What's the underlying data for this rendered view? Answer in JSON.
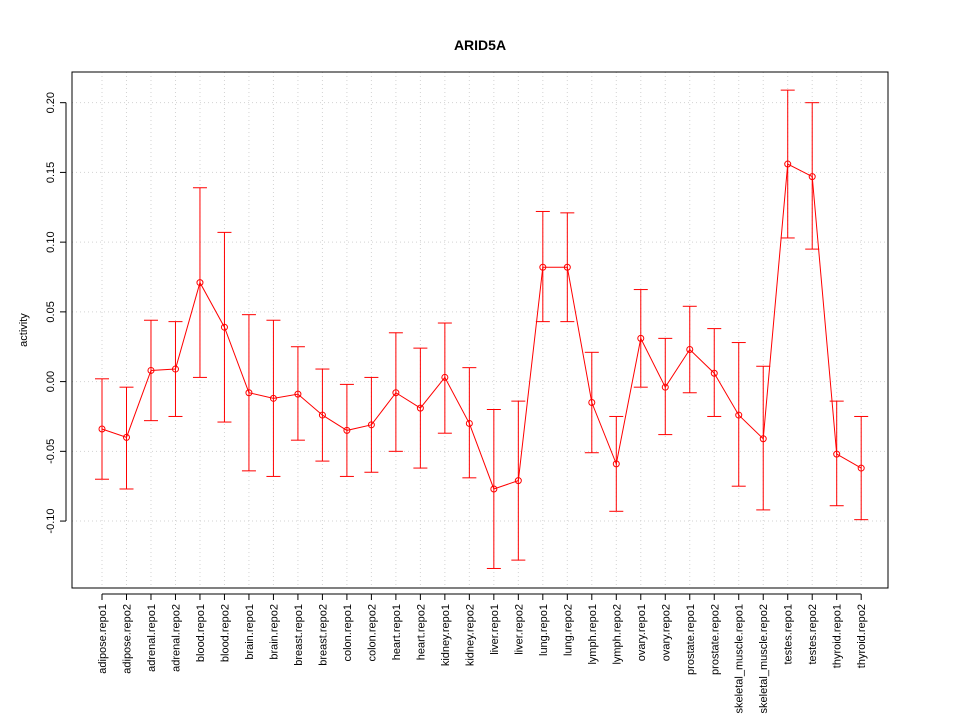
{
  "chart_data": {
    "type": "line",
    "title": "ARID5A",
    "xlabel": "",
    "ylabel": "activity",
    "ylim": [
      -0.148,
      0.222
    ],
    "yticks": [
      -0.1,
      -0.05,
      0.0,
      0.05,
      0.1,
      0.15,
      0.2
    ],
    "ytick_labels": [
      "-0.10",
      "-0.05",
      "0.00",
      "0.05",
      "0.10",
      "0.15",
      "0.20"
    ],
    "grid": true,
    "color": "#ff0000",
    "categories": [
      "adipose.repo1",
      "adipose.repo2",
      "adrenal.repo1",
      "adrenal.repo2",
      "blood.repo1",
      "blood.repo2",
      "brain.repo1",
      "brain.repo2",
      "breast.repo1",
      "breast.repo2",
      "colon.repo1",
      "colon.repo2",
      "heart.repo1",
      "heart.repo2",
      "kidney.repo1",
      "kidney.repo2",
      "liver.repo1",
      "liver.repo2",
      "lung.repo1",
      "lung.repo2",
      "lymph.repo1",
      "lymph.repo2",
      "ovary.repo1",
      "ovary.repo2",
      "prostate.repo1",
      "prostate.repo2",
      "skeletal_muscle.repo1",
      "skeletal_muscle.repo2",
      "testes.repo1",
      "testes.repo2",
      "thyroid.repo1",
      "thyroid.repo2"
    ],
    "series": [
      {
        "name": "activity",
        "values": [
          -0.034,
          -0.04,
          0.008,
          0.009,
          0.071,
          0.039,
          -0.008,
          -0.012,
          -0.009,
          -0.024,
          -0.035,
          -0.031,
          -0.008,
          -0.019,
          0.003,
          -0.03,
          -0.077,
          -0.071,
          0.082,
          0.082,
          -0.015,
          -0.059,
          0.031,
          -0.004,
          0.023,
          0.006,
          -0.024,
          -0.041,
          0.156,
          0.147,
          -0.052,
          -0.062
        ],
        "upper": [
          0.002,
          -0.004,
          0.044,
          0.043,
          0.139,
          0.107,
          0.048,
          0.044,
          0.025,
          0.009,
          -0.002,
          0.003,
          0.035,
          0.024,
          0.042,
          0.01,
          -0.02,
          -0.014,
          0.122,
          0.121,
          0.021,
          -0.025,
          0.066,
          0.031,
          0.054,
          0.038,
          0.028,
          0.011,
          0.209,
          0.2,
          -0.014,
          -0.025
        ],
        "lower": [
          -0.07,
          -0.077,
          -0.028,
          -0.025,
          0.003,
          -0.029,
          -0.064,
          -0.068,
          -0.042,
          -0.057,
          -0.068,
          -0.065,
          -0.05,
          -0.062,
          -0.037,
          -0.069,
          -0.134,
          -0.128,
          0.043,
          0.043,
          -0.051,
          -0.093,
          -0.004,
          -0.038,
          -0.008,
          -0.025,
          -0.075,
          -0.092,
          0.103,
          0.095,
          -0.089,
          -0.099
        ]
      }
    ]
  }
}
